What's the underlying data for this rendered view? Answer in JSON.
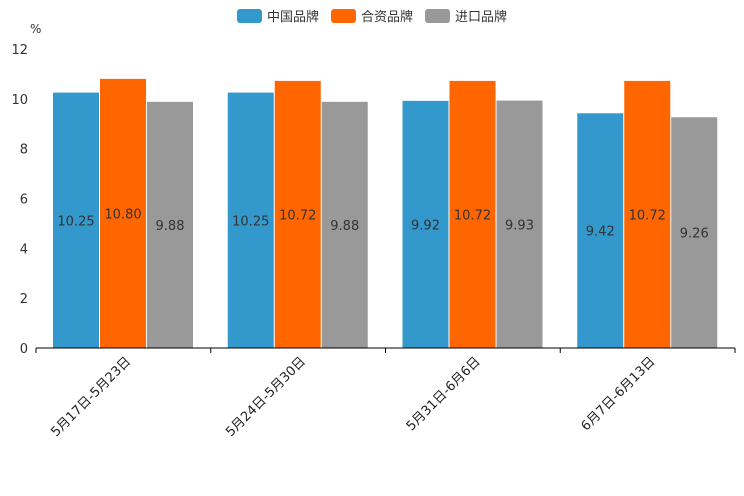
{
  "chart_data": {
    "type": "bar",
    "unit": "%",
    "categories": [
      "5月17日-5月23日",
      "5月24日-5月30日",
      "5月31日-6月6日",
      "6月7日-6月13日"
    ],
    "series": [
      {
        "name": "中国品牌",
        "color": "#3399cc",
        "values": [
          10.25,
          10.25,
          9.92,
          9.42
        ],
        "labels": [
          "10.25",
          "10.25",
          "9.92",
          "9.42"
        ]
      },
      {
        "name": "合资品牌",
        "color": "#ff6600",
        "values": [
          10.8,
          10.72,
          10.72,
          10.72
        ],
        "labels": [
          "10.80",
          "10.72",
          "10.72",
          "10.72"
        ]
      },
      {
        "name": "进口品牌",
        "color": "#999999",
        "values": [
          9.88,
          9.88,
          9.93,
          9.26
        ],
        "labels": [
          "9.88",
          "9.88",
          "9.93",
          "9.26"
        ]
      }
    ],
    "y_ticks": [
      "0",
      "2",
      "4",
      "6",
      "8",
      "10",
      "12"
    ],
    "ylim": [
      0,
      12
    ],
    "legend_position": "top-center"
  }
}
